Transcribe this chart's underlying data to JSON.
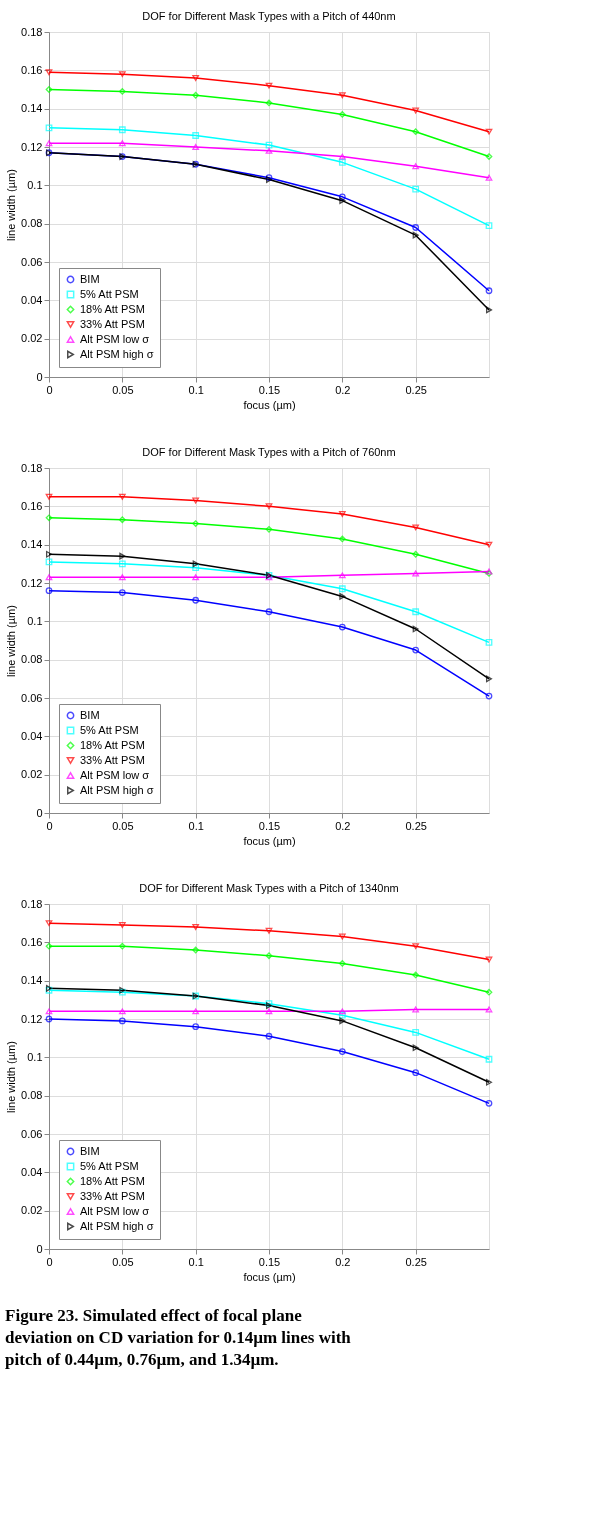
{
  "chart_data": [
    {
      "type": "line",
      "title": "DOF for Different Mask Types with a Pitch of 440nm",
      "xlabel": "focus (µm)",
      "ylabel": "line width (µm)",
      "x": [
        0,
        0.05,
        0.1,
        0.15,
        0.2,
        0.25,
        0.3
      ],
      "xlim": [
        0,
        0.3
      ],
      "xticks": [
        0,
        0.05,
        0.1,
        0.15,
        0.2,
        0.25
      ],
      "ylim": [
        0,
        0.18
      ],
      "yticks": [
        0,
        0.02,
        0.04,
        0.06,
        0.08,
        0.1,
        0.12,
        0.14,
        0.16,
        0.18
      ],
      "grid": true,
      "legend": "bottom left",
      "line_style": "solid",
      "series": [
        {
          "name": "BIM",
          "color": "#0000ff",
          "marker": "circle",
          "values": [
            0.117,
            0.115,
            0.111,
            0.104,
            0.094,
            0.078,
            0.045
          ]
        },
        {
          "name": "5%  Att PSM",
          "color": "#00ffff",
          "marker": "square",
          "values": [
            0.13,
            0.129,
            0.126,
            0.121,
            0.112,
            0.098,
            0.079
          ]
        },
        {
          "name": "18% Att PSM",
          "color": "#00ff00",
          "marker": "diamond",
          "values": [
            0.15,
            0.149,
            0.147,
            0.143,
            0.137,
            0.128,
            0.115
          ]
        },
        {
          "name": "33% Att PSM",
          "color": "#ff0000",
          "marker": "triangle-down",
          "values": [
            0.159,
            0.158,
            0.156,
            0.152,
            0.147,
            0.139,
            0.128
          ]
        },
        {
          "name": "Alt PSM low σ",
          "color": "#ff00ff",
          "marker": "triangle-up",
          "values": [
            0.122,
            0.122,
            0.12,
            0.118,
            0.115,
            0.11,
            0.104
          ]
        },
        {
          "name": "Alt PSM high σ",
          "color": "#000000",
          "marker": "triangle-right",
          "values": [
            0.117,
            0.115,
            0.111,
            0.103,
            0.092,
            0.074,
            0.035
          ]
        }
      ]
    },
    {
      "type": "line",
      "title": "DOF for Different Mask Types with a Pitch of 760nm",
      "xlabel": "focus (µm)",
      "ylabel": "line width (µm)",
      "x": [
        0,
        0.05,
        0.1,
        0.15,
        0.2,
        0.25,
        0.3
      ],
      "xlim": [
        0,
        0.3
      ],
      "xticks": [
        0,
        0.05,
        0.1,
        0.15,
        0.2,
        0.25
      ],
      "ylim": [
        0,
        0.18
      ],
      "yticks": [
        0,
        0.02,
        0.04,
        0.06,
        0.08,
        0.1,
        0.12,
        0.14,
        0.16,
        0.18
      ],
      "grid": true,
      "legend": "bottom left",
      "line_style": "solid",
      "series": [
        {
          "name": "BIM",
          "color": "#0000ff",
          "marker": "circle",
          "values": [
            0.116,
            0.115,
            0.111,
            0.105,
            0.097,
            0.085,
            0.061
          ]
        },
        {
          "name": "5%  Att PSM",
          "color": "#00ffff",
          "marker": "square",
          "values": [
            0.131,
            0.13,
            0.128,
            0.124,
            0.117,
            0.105,
            0.089
          ]
        },
        {
          "name": "18% Att PSM",
          "color": "#00ff00",
          "marker": "diamond",
          "values": [
            0.154,
            0.153,
            0.151,
            0.148,
            0.143,
            0.135,
            0.125
          ]
        },
        {
          "name": "33% Att PSM",
          "color": "#ff0000",
          "marker": "triangle-down",
          "values": [
            0.165,
            0.165,
            0.163,
            0.16,
            0.156,
            0.149,
            0.14
          ]
        },
        {
          "name": "Alt PSM low σ",
          "color": "#ff00ff",
          "marker": "triangle-up",
          "values": [
            0.123,
            0.123,
            0.123,
            0.123,
            0.124,
            0.125,
            0.126
          ]
        },
        {
          "name": "Alt PSM high σ",
          "color": "#000000",
          "marker": "triangle-right",
          "values": [
            0.135,
            0.134,
            0.13,
            0.124,
            0.113,
            0.096,
            0.07
          ]
        }
      ]
    },
    {
      "type": "line",
      "title": "DOF for Different Mask Types with a Pitch of 1340nm",
      "xlabel": "focus (µm)",
      "ylabel": "line width (µm)",
      "x": [
        0,
        0.05,
        0.1,
        0.15,
        0.2,
        0.25,
        0.3
      ],
      "xlim": [
        0,
        0.3
      ],
      "xticks": [
        0,
        0.05,
        0.1,
        0.15,
        0.2,
        0.25
      ],
      "ylim": [
        0,
        0.18
      ],
      "yticks": [
        0,
        0.02,
        0.04,
        0.06,
        0.08,
        0.1,
        0.12,
        0.14,
        0.16,
        0.18
      ],
      "grid": true,
      "legend": "bottom left",
      "line_style": "solid",
      "annotations": [
        "Figure 23.  Simulated effect of focal plane deviation on CD variation for 0.14µm lines with pitch of 0.44µm, 0.76µm, and 1.34µm."
      ],
      "series": [
        {
          "name": "BIM",
          "color": "#0000ff",
          "marker": "circle",
          "values": [
            0.12,
            0.119,
            0.116,
            0.111,
            0.103,
            0.092,
            0.076
          ]
        },
        {
          "name": "5%  Att PSM",
          "color": "#00ffff",
          "marker": "square",
          "values": [
            0.135,
            0.134,
            0.132,
            0.128,
            0.122,
            0.113,
            0.099
          ]
        },
        {
          "name": "18% Att PSM",
          "color": "#00ff00",
          "marker": "diamond",
          "values": [
            0.158,
            0.158,
            0.156,
            0.153,
            0.149,
            0.143,
            0.134
          ]
        },
        {
          "name": "33% Att PSM",
          "color": "#ff0000",
          "marker": "triangle-down",
          "values": [
            0.17,
            0.169,
            0.168,
            0.166,
            0.163,
            0.158,
            0.151
          ]
        },
        {
          "name": "Alt PSM low σ",
          "color": "#ff00ff",
          "marker": "triangle-up",
          "values": [
            0.124,
            0.124,
            0.124,
            0.124,
            0.124,
            0.125,
            0.125
          ]
        },
        {
          "name": "Alt PSM high σ",
          "color": "#000000",
          "marker": "triangle-right",
          "values": [
            0.136,
            0.135,
            0.132,
            0.127,
            0.119,
            0.105,
            0.087
          ]
        }
      ]
    }
  ]
}
